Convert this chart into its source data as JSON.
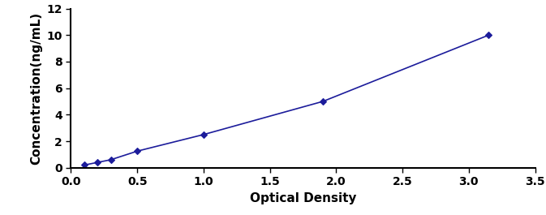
{
  "x": [
    0.1,
    0.2,
    0.3,
    0.5,
    1.0,
    1.9,
    3.15
  ],
  "y": [
    0.2,
    0.4,
    0.6,
    1.25,
    2.5,
    5.0,
    10.0
  ],
  "line_color": "#1c1c9b",
  "marker_color": "#1c1c9b",
  "marker": "D",
  "marker_size": 4,
  "line_width": 1.2,
  "xlabel": "Optical Density",
  "ylabel": "Concentration(ng/mL)",
  "xlim": [
    0,
    3.5
  ],
  "ylim": [
    0,
    12
  ],
  "xticks": [
    0,
    0.5,
    1.0,
    1.5,
    2.0,
    2.5,
    3.0,
    3.5
  ],
  "yticks": [
    0,
    2,
    4,
    6,
    8,
    10,
    12
  ],
  "xlabel_fontsize": 11,
  "ylabel_fontsize": 11,
  "tick_fontsize": 10,
  "label_fontweight": "bold"
}
